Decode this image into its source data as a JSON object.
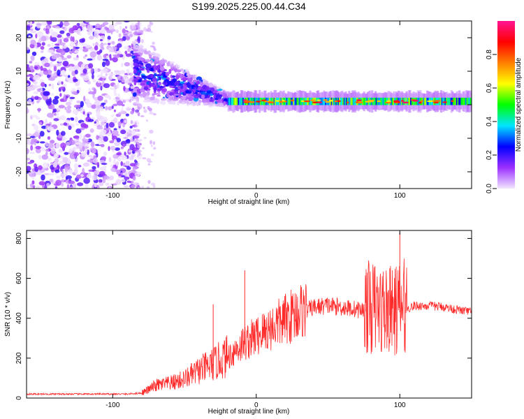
{
  "title": "S199.2025.225.00.44.C34",
  "chart_data": [
    {
      "type": "heatmap",
      "xlabel": "Height of straight line (km)",
      "ylabel": "Frequency (Hz)",
      "xlim": [
        -160,
        150
      ],
      "ylim": [
        -25,
        25
      ],
      "xticks": [
        -100,
        0,
        100
      ],
      "yticks": [
        20,
        10,
        0,
        -10,
        -20
      ],
      "colorbar": {
        "label": "Normalized spectral amplitude",
        "range": [
          0.0,
          1.0
        ],
        "ticks": [
          "0.0",
          "0.2",
          "0.4",
          "0.6",
          "0.8"
        ],
        "colors": [
          "#f2e6ff",
          "#9b30ff",
          "#0000ff",
          "#00e5ff",
          "#00ff00",
          "#ffff00",
          "#ff7f00",
          "#ff0000",
          "#ff1493"
        ]
      },
      "description_of_features": {
        "broadband_noise_region_km": [
          -160,
          -85
        ],
        "dispersive_arrival_km": [
          -85,
          -20
        ],
        "narrow_band_signal_km": [
          -20,
          150
        ],
        "narrow_band_center_hz": 1
      }
    },
    {
      "type": "line",
      "xlabel": "Height of straight line (km)",
      "ylabel": "SNR (10 * v/v)",
      "xlim": [
        -160,
        150
      ],
      "ylim": [
        0,
        840
      ],
      "xticks": [
        -100,
        0,
        100
      ],
      "yticks": [
        0,
        200,
        400,
        600,
        800
      ],
      "series": [
        {
          "color": "#ff2a2a",
          "x": [
            -160,
            -140,
            -120,
            -100,
            -90,
            -80,
            -75,
            -70,
            -60,
            -50,
            -40,
            -30,
            -20,
            -10,
            0,
            10,
            20,
            30,
            40,
            50,
            60,
            70,
            80,
            90,
            95,
            100,
            110,
            120,
            130,
            140,
            150
          ],
          "y": [
            20,
            20,
            20,
            20,
            20,
            25,
            40,
            60,
            70,
            90,
            130,
            160,
            200,
            260,
            300,
            340,
            380,
            420,
            450,
            460,
            450,
            440,
            430,
            420,
            410,
            430,
            460,
            460,
            455,
            440,
            430
          ]
        }
      ],
      "spikes": [
        {
          "x": -30,
          "y": 470
        },
        {
          "x": -8,
          "y": 640
        },
        {
          "x": 76,
          "y": 560
        },
        {
          "x": 93,
          "y": 650
        },
        {
          "x": 100,
          "y": 830
        }
      ]
    }
  ]
}
